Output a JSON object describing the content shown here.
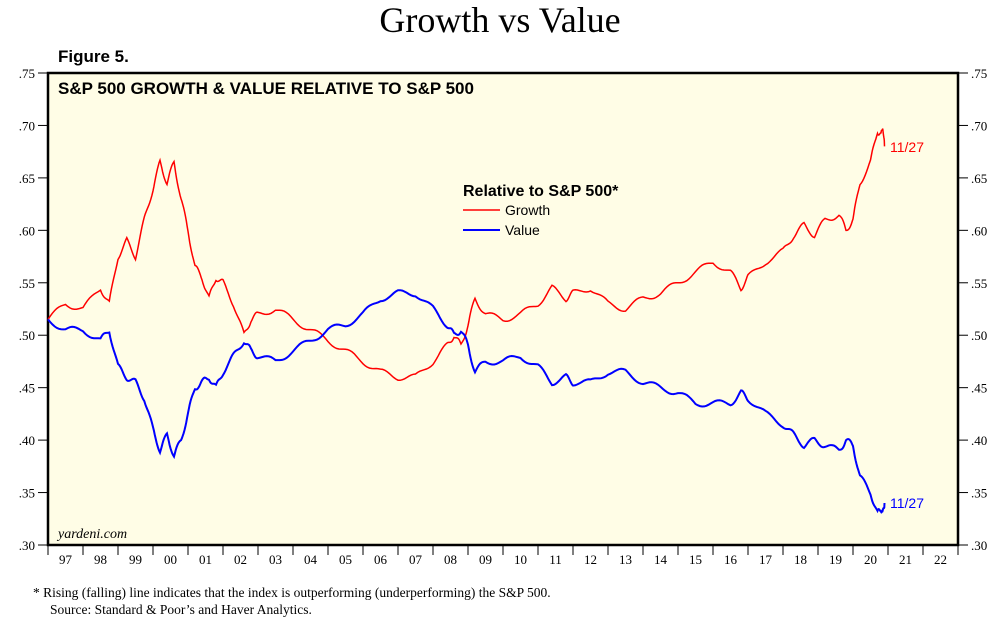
{
  "header": {
    "title": "Growth vs Value",
    "figure_label": "Figure 5."
  },
  "footnote": {
    "line1": "*  Rising (falling) line indicates that the index is outperforming (underperforming) the S&P 500.",
    "line2": "Source: Standard & Poor’s and Haver Analytics."
  },
  "colors": {
    "growth": "#ff0000",
    "value": "#0000ff",
    "plot_bg": "#fffde6"
  },
  "chart_data": {
    "type": "line",
    "title": "S&P 500 GROWTH & VALUE RELATIVE TO S&P 500",
    "watermark": "yardeni.com",
    "legend_title": "Relative to S&P 500*",
    "legend_placement": "top-center",
    "xlim": [
      1997,
      2023
    ],
    "ylim": [
      0.3,
      0.75
    ],
    "grid": false,
    "x_tick_labels": [
      "97",
      "98",
      "99",
      "00",
      "01",
      "02",
      "03",
      "04",
      "05",
      "06",
      "07",
      "08",
      "09",
      "10",
      "11",
      "12",
      "13",
      "14",
      "15",
      "16",
      "17",
      "18",
      "19",
      "20",
      "21",
      "22"
    ],
    "y_tick_labels": [
      ".30",
      ".35",
      ".40",
      ".45",
      ".50",
      ".55",
      ".60",
      ".65",
      ".70",
      ".75"
    ],
    "y_ticks": [
      0.3,
      0.35,
      0.4,
      0.45,
      0.5,
      0.55,
      0.6,
      0.65,
      0.7,
      0.75
    ],
    "series": [
      {
        "name": "Growth",
        "end_label": "11/27",
        "x": [
          1997.0,
          1997.5,
          1998.0,
          1998.5,
          1998.75,
          1999.0,
          1999.25,
          1999.5,
          1999.75,
          2000.0,
          2000.2,
          2000.4,
          2000.6,
          2000.8,
          2001.0,
          2001.2,
          2001.4,
          2001.6,
          2001.8,
          2002.0,
          2002.3,
          2002.6,
          2002.8,
          2003.0,
          2003.5,
          2004.0,
          2004.5,
          2005.0,
          2005.5,
          2006.0,
          2006.5,
          2007.0,
          2007.5,
          2008.0,
          2008.4,
          2008.6,
          2008.8,
          2009.0,
          2009.2,
          2009.5,
          2010.0,
          2010.5,
          2011.0,
          2011.4,
          2011.8,
          2012.0,
          2012.5,
          2013.0,
          2013.5,
          2014.0,
          2014.5,
          2015.0,
          2015.5,
          2016.0,
          2016.5,
          2016.8,
          2017.0,
          2017.5,
          2018.0,
          2018.3,
          2018.6,
          2018.9,
          2019.2,
          2019.6,
          2019.8,
          2020.0,
          2020.2,
          2020.5,
          2020.7,
          2020.8,
          2020.85,
          2020.9
        ],
        "y": [
          0.515,
          0.53,
          0.525,
          0.545,
          0.53,
          0.575,
          0.59,
          0.575,
          0.61,
          0.64,
          0.665,
          0.645,
          0.665,
          0.63,
          0.6,
          0.565,
          0.555,
          0.535,
          0.555,
          0.55,
          0.53,
          0.5,
          0.515,
          0.52,
          0.525,
          0.515,
          0.505,
          0.495,
          0.485,
          0.475,
          0.465,
          0.46,
          0.46,
          0.475,
          0.49,
          0.5,
          0.49,
          0.51,
          0.535,
          0.52,
          0.515,
          0.52,
          0.53,
          0.545,
          0.535,
          0.54,
          0.545,
          0.53,
          0.525,
          0.535,
          0.54,
          0.55,
          0.56,
          0.57,
          0.56,
          0.545,
          0.555,
          0.57,
          0.58,
          0.595,
          0.605,
          0.595,
          0.61,
          0.615,
          0.6,
          0.61,
          0.645,
          0.665,
          0.695,
          0.69,
          0.7,
          0.68
        ]
      },
      {
        "name": "Value",
        "end_label": "11/27",
        "x": [
          1997.0,
          1997.5,
          1998.0,
          1998.5,
          1998.75,
          1999.0,
          1999.25,
          1999.5,
          1999.75,
          2000.0,
          2000.2,
          2000.4,
          2000.6,
          2000.8,
          2001.0,
          2001.2,
          2001.4,
          2001.6,
          2001.8,
          2002.0,
          2002.3,
          2002.6,
          2002.8,
          2003.0,
          2003.5,
          2004.0,
          2004.5,
          2005.0,
          2005.5,
          2006.0,
          2006.5,
          2007.0,
          2007.5,
          2008.0,
          2008.4,
          2008.6,
          2008.8,
          2009.0,
          2009.2,
          2009.5,
          2010.0,
          2010.5,
          2011.0,
          2011.4,
          2011.8,
          2012.0,
          2012.5,
          2013.0,
          2013.5,
          2014.0,
          2014.5,
          2015.0,
          2015.5,
          2016.0,
          2016.5,
          2016.8,
          2017.0,
          2017.5,
          2018.0,
          2018.3,
          2018.6,
          2018.9,
          2019.2,
          2019.6,
          2019.8,
          2020.0,
          2020.2,
          2020.5,
          2020.7,
          2020.8,
          2020.85,
          2020.9
        ],
        "y": [
          0.515,
          0.505,
          0.505,
          0.495,
          0.505,
          0.47,
          0.46,
          0.455,
          0.44,
          0.41,
          0.39,
          0.405,
          0.385,
          0.4,
          0.425,
          0.45,
          0.455,
          0.46,
          0.45,
          0.465,
          0.48,
          0.495,
          0.485,
          0.48,
          0.475,
          0.485,
          0.495,
          0.505,
          0.51,
          0.52,
          0.535,
          0.54,
          0.54,
          0.525,
          0.51,
          0.5,
          0.505,
          0.49,
          0.465,
          0.475,
          0.475,
          0.48,
          0.47,
          0.455,
          0.46,
          0.455,
          0.455,
          0.465,
          0.465,
          0.455,
          0.45,
          0.445,
          0.435,
          0.435,
          0.435,
          0.445,
          0.44,
          0.425,
          0.415,
          0.405,
          0.395,
          0.4,
          0.395,
          0.39,
          0.4,
          0.395,
          0.365,
          0.35,
          0.33,
          0.335,
          0.33,
          0.34
        ]
      }
    ]
  }
}
